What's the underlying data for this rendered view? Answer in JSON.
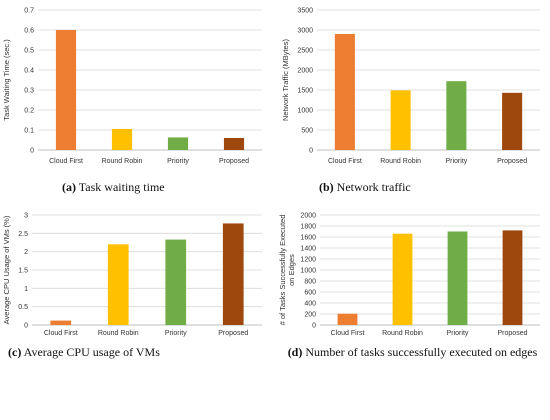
{
  "colors": {
    "cloud_first": "#ED7D31",
    "round_robin": "#FFC000",
    "priority": "#70AD47",
    "proposed": "#9E480E"
  },
  "chart_data": [
    {
      "type": "bar",
      "panel_letter": "(a)",
      "caption": "Task waiting time",
      "categories": [
        "Cloud First",
        "Round Robin",
        "Priority",
        "Proposed"
      ],
      "values": [
        0.6,
        0.105,
        0.063,
        0.06
      ],
      "ylabel": "Task Waiting Time (sec.)",
      "ylim": [
        0,
        0.7
      ],
      "yticks": [
        0,
        0.1,
        0.2,
        0.3,
        0.4,
        0.5,
        0.6,
        0.7
      ],
      "ytick_labels": [
        "0",
        "0.1",
        "0.2",
        "0.3",
        "0.4",
        "0.5",
        "0.6",
        "0.7"
      ],
      "grid": true
    },
    {
      "type": "bar",
      "panel_letter": "(b)",
      "caption": "Network traffic",
      "categories": [
        "Cloud First",
        "Round Robin",
        "Priority",
        "Proposed"
      ],
      "values": [
        2900,
        1490,
        1720,
        1430
      ],
      "ylabel": "Network Traffic (MBytes)",
      "ylim": [
        0,
        3500
      ],
      "yticks": [
        0,
        500,
        1000,
        1500,
        2000,
        2500,
        3000,
        3500
      ],
      "ytick_labels": [
        "0",
        "500",
        "1000",
        "1500",
        "2000",
        "2500",
        "3000",
        "3500"
      ],
      "grid": true
    },
    {
      "type": "bar",
      "panel_letter": "(c)",
      "caption": "Average CPU usage of VMs",
      "categories": [
        "Cloud First",
        "Round Robin",
        "Priority",
        "Proposed"
      ],
      "values": [
        0.12,
        2.2,
        2.33,
        2.77
      ],
      "ylabel": "Average CPU Usage of VMs (%)",
      "ylim": [
        0,
        3
      ],
      "yticks": [
        0,
        0.5,
        1,
        1.5,
        2,
        2.5,
        3
      ],
      "ytick_labels": [
        "0",
        "0.5",
        "1",
        "1.5",
        "2",
        "2.5",
        "3"
      ],
      "grid": true
    },
    {
      "type": "bar",
      "panel_letter": "(d)",
      "caption": "Number of tasks successfully executed on edges",
      "categories": [
        "Cloud First",
        "Round Robin",
        "Priority",
        "Proposed"
      ],
      "values": [
        205,
        1660,
        1700,
        1720
      ],
      "ylabel": "# of Tasks Successfully Executed on Edges",
      "ylabel_lines": [
        "# of Tasks Successfully Executed",
        "on Edges"
      ],
      "ylim": [
        0,
        2000
      ],
      "yticks": [
        0,
        200,
        400,
        600,
        800,
        1000,
        1200,
        1400,
        1600,
        1800,
        2000
      ],
      "ytick_labels": [
        "0",
        "200",
        "400",
        "600",
        "800",
        "1000",
        "1200",
        "1400",
        "1600",
        "1800",
        "2000"
      ],
      "grid": true
    }
  ]
}
